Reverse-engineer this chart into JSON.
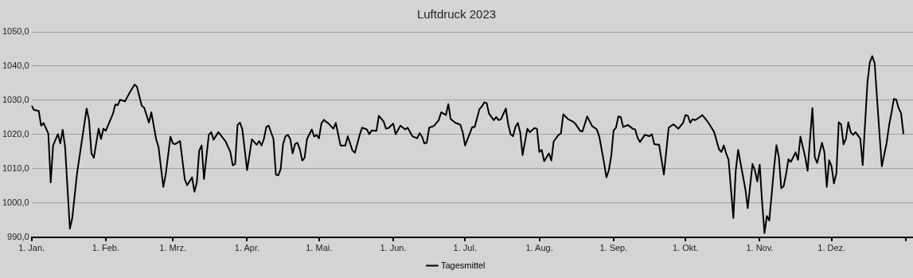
{
  "chart_data": {
    "type": "line",
    "title": "Luftdruck 2023",
    "x": [
      "2023-01-01",
      "2023-01-02",
      "2023-01-04",
      "2023-01-05",
      "2023-01-06",
      "2023-01-08",
      "2023-01-09",
      "2023-01-10",
      "2023-01-12",
      "2023-01-13",
      "2023-01-14",
      "2023-01-15",
      "2023-01-17",
      "2023-01-18",
      "2023-01-20",
      "2023-01-24",
      "2023-01-25",
      "2023-01-26",
      "2023-01-27",
      "2023-01-29",
      "2023-01-30",
      "2023-01-31",
      "2023-02-01",
      "2023-02-04",
      "2023-02-05",
      "2023-02-06",
      "2023-02-07",
      "2023-02-09",
      "2023-02-11",
      "2023-02-13",
      "2023-02-14",
      "2023-02-16",
      "2023-02-17",
      "2023-02-19",
      "2023-02-20",
      "2023-02-22",
      "2023-02-23",
      "2023-02-25",
      "2023-02-26",
      "2023-02-28",
      "2023-03-01",
      "2023-03-02",
      "2023-03-04",
      "2023-03-06",
      "2023-03-07",
      "2023-03-09",
      "2023-03-10",
      "2023-03-11",
      "2023-03-12",
      "2023-03-13",
      "2023-03-14",
      "2023-03-16",
      "2023-03-17",
      "2023-03-18",
      "2023-03-20",
      "2023-03-22",
      "2023-03-23",
      "2023-03-25",
      "2023-03-26",
      "2023-03-27",
      "2023-03-28",
      "2023-03-29",
      "2023-03-30",
      "2023-04-01",
      "2023-04-03",
      "2023-04-05",
      "2023-04-06",
      "2023-04-07",
      "2023-04-08",
      "2023-04-09",
      "2023-04-10",
      "2023-04-12",
      "2023-04-13",
      "2023-04-14",
      "2023-04-15",
      "2023-04-16",
      "2023-04-17",
      "2023-04-18",
      "2023-04-19",
      "2023-04-20",
      "2023-04-21",
      "2023-04-22",
      "2023-04-23",
      "2023-04-24",
      "2023-04-25",
      "2023-04-26",
      "2023-04-28",
      "2023-04-29",
      "2023-04-30",
      "2023-05-01",
      "2023-05-02",
      "2023-05-03",
      "2023-05-05",
      "2023-05-07",
      "2023-05-08",
      "2023-05-10",
      "2023-05-12",
      "2023-05-13",
      "2023-05-15",
      "2023-05-16",
      "2023-05-18",
      "2023-05-19",
      "2023-05-21",
      "2023-05-22",
      "2023-05-23",
      "2023-05-25",
      "2023-05-26",
      "2023-05-28",
      "2023-05-29",
      "2023-05-30",
      "2023-06-01",
      "2023-06-02",
      "2023-06-04",
      "2023-06-06",
      "2023-06-07",
      "2023-06-09",
      "2023-06-11",
      "2023-06-12",
      "2023-06-13",
      "2023-06-14",
      "2023-06-15",
      "2023-06-16",
      "2023-06-18",
      "2023-06-20",
      "2023-06-21",
      "2023-06-23",
      "2023-06-24",
      "2023-06-25",
      "2023-06-27",
      "2023-06-29",
      "2023-06-30",
      "2023-07-01",
      "2023-07-04",
      "2023-07-05",
      "2023-07-07",
      "2023-07-08",
      "2023-07-09",
      "2023-07-10",
      "2023-07-11",
      "2023-07-13",
      "2023-07-14",
      "2023-07-15",
      "2023-07-16",
      "2023-07-18",
      "2023-07-19",
      "2023-07-20",
      "2023-07-21",
      "2023-07-22",
      "2023-07-23",
      "2023-07-24",
      "2023-07-25",
      "2023-07-27",
      "2023-07-28",
      "2023-07-30",
      "2023-07-31",
      "2023-08-01",
      "2023-08-02",
      "2023-08-03",
      "2023-08-05",
      "2023-08-06",
      "2023-08-07",
      "2023-08-09",
      "2023-08-10",
      "2023-08-11",
      "2023-08-13",
      "2023-08-15",
      "2023-08-16",
      "2023-08-18",
      "2023-08-19",
      "2023-08-21",
      "2023-08-23",
      "2023-08-25",
      "2023-08-26",
      "2023-08-28",
      "2023-08-29",
      "2023-08-30",
      "2023-08-31",
      "2023-09-01",
      "2023-09-02",
      "2023-09-03",
      "2023-09-04",
      "2023-09-05",
      "2023-09-07",
      "2023-09-09",
      "2023-09-10",
      "2023-09-11",
      "2023-09-12",
      "2023-09-14",
      "2023-09-16",
      "2023-09-17",
      "2023-09-18",
      "2023-09-20",
      "2023-09-22",
      "2023-09-24",
      "2023-09-26",
      "2023-09-28",
      "2023-09-30",
      "2023-10-01",
      "2023-10-02",
      "2023-10-03",
      "2023-10-04",
      "2023-10-05",
      "2023-10-07",
      "2023-10-08",
      "2023-10-10",
      "2023-10-11",
      "2023-10-13",
      "2023-10-15",
      "2023-10-16",
      "2023-10-17",
      "2023-10-18",
      "2023-10-19",
      "2023-10-21",
      "2023-10-22",
      "2023-10-23",
      "2023-10-26",
      "2023-10-27",
      "2023-10-29",
      "2023-10-30",
      "2023-10-31",
      "2023-11-01",
      "2023-11-02",
      "2023-11-03",
      "2023-11-04",
      "2023-11-05",
      "2023-11-07",
      "2023-11-08",
      "2023-11-09",
      "2023-11-10",
      "2023-11-11",
      "2023-11-12",
      "2023-11-13",
      "2023-11-14",
      "2023-11-16",
      "2023-11-17",
      "2023-11-18",
      "2023-11-20",
      "2023-11-21",
      "2023-11-23",
      "2023-11-24",
      "2023-11-25",
      "2023-11-27",
      "2023-11-28",
      "2023-11-29",
      "2023-11-30",
      "2023-12-01",
      "2023-12-02",
      "2023-12-03",
      "2023-12-04",
      "2023-12-05",
      "2023-12-06",
      "2023-12-07",
      "2023-12-08",
      "2023-12-09",
      "2023-12-10",
      "2023-12-11",
      "2023-12-13",
      "2023-12-14",
      "2023-12-16",
      "2023-12-17",
      "2023-12-18",
      "2023-12-19",
      "2023-12-20",
      "2023-12-21",
      "2023-12-22",
      "2023-12-24",
      "2023-12-25",
      "2023-12-26",
      "2023-12-27",
      "2023-12-28",
      "2023-12-29",
      "2023-12-30",
      "2023-12-31"
    ],
    "series": [
      {
        "name": "Tagesmittel",
        "color": "#000000",
        "values": [
          1028.4,
          1027.2,
          1026.9,
          1022.6,
          1023.4,
          1020.3,
          1006.0,
          1016.8,
          1020.1,
          1017.4,
          1021.4,
          1016.4,
          992.5,
          995.6,
          1008.7,
          1027.6,
          1024.2,
          1014.5,
          1013.2,
          1021.7,
          1018.7,
          1021.7,
          1021.1,
          1026.1,
          1028.8,
          1028.6,
          1030.2,
          1029.7,
          1032.3,
          1034.6,
          1034.0,
          1028.4,
          1027.9,
          1023.5,
          1026.5,
          1018.7,
          1016.4,
          1004.7,
          1008.3,
          1019.4,
          1017.4,
          1017.2,
          1018.1,
          1006.8,
          1005.2,
          1007.5,
          1003.3,
          1006.0,
          1015.3,
          1016.8,
          1007.0,
          1019.9,
          1020.7,
          1018.5,
          1020.7,
          1018.9,
          1018.0,
          1014.9,
          1011.0,
          1011.4,
          1022.8,
          1023.5,
          1021.5,
          1009.6,
          1018.6,
          1017.0,
          1018.1,
          1016.8,
          1018.7,
          1022.2,
          1022.6,
          1018.7,
          1008.3,
          1008.1,
          1009.9,
          1017.2,
          1019.5,
          1019.9,
          1018.7,
          1014.5,
          1017.2,
          1017.6,
          1015.7,
          1012.4,
          1013.2,
          1018.7,
          1021.5,
          1019.4,
          1019.9,
          1018.9,
          1023.2,
          1024.3,
          1023.2,
          1021.7,
          1023.4,
          1016.8,
          1016.8,
          1019.5,
          1015.3,
          1014.7,
          1019.9,
          1022.0,
          1021.5,
          1020.1,
          1021.2,
          1021.1,
          1025.5,
          1023.8,
          1021.7,
          1021.9,
          1023.2,
          1020.1,
          1022.6,
          1021.5,
          1022.0,
          1019.5,
          1018.9,
          1020.4,
          1019.4,
          1017.4,
          1017.6,
          1022.0,
          1022.5,
          1024.2,
          1026.5,
          1025.7,
          1028.9,
          1024.5,
          1023.4,
          1022.9,
          1020.7,
          1016.8,
          1022.2,
          1022.2,
          1027.4,
          1028.2,
          1029.4,
          1029.2,
          1026.1,
          1024.2,
          1025.1,
          1024.2,
          1024.5,
          1027.6,
          1023.0,
          1020.1,
          1019.5,
          1022.2,
          1023.4,
          1020.7,
          1014.0,
          1021.7,
          1020.7,
          1021.9,
          1021.7,
          1014.9,
          1015.5,
          1012.2,
          1014.5,
          1012.4,
          1018.0,
          1019.9,
          1020.3,
          1025.9,
          1024.5,
          1023.8,
          1023.2,
          1021.1,
          1020.9,
          1025.3,
          1022.5,
          1021.5,
          1019.5,
          1011.8,
          1007.5,
          1009.5,
          1013.7,
          1021.2,
          1022.0,
          1025.3,
          1025.1,
          1022.2,
          1022.8,
          1021.7,
          1021.5,
          1019.1,
          1017.8,
          1019.9,
          1019.5,
          1020.1,
          1017.2,
          1017.0,
          1008.3,
          1022.0,
          1023.0,
          1021.7,
          1023.4,
          1025.7,
          1025.5,
          1023.4,
          1024.5,
          1024.2,
          1025.1,
          1025.7,
          1024.0,
          1023.0,
          1020.7,
          1015.7,
          1014.9,
          1016.8,
          1014.5,
          1012.6,
          995.6,
          1009.5,
          1015.5,
          1004.1,
          998.5,
          1011.4,
          1009.5,
          1006.3,
          1011.2,
          1000.3,
          991.2,
          996.2,
          994.9,
          1010.3,
          1016.9,
          1013.4,
          1004.3,
          1004.9,
          1008.4,
          1012.8,
          1012.0,
          1014.8,
          1012.6,
          1019.4,
          1013.4,
          1009.4,
          1027.7,
          1013.4,
          1011.7,
          1017.6,
          1014.9,
          1004.7,
          1012.5,
          1010.7,
          1005.7,
          1008.6,
          1023.6,
          1023.0,
          1017.1,
          1018.8,
          1023.6,
          1020.7,
          1019.9,
          1020.7,
          1018.8,
          1011.1,
          1035.4,
          1041.2,
          1042.9,
          1040.8,
          1030.4,
          1020.3,
          1010.7,
          1017.6,
          1022.6,
          1026.3,
          1030.4,
          1030.2,
          1027.7,
          1026.3,
          1020.3
        ]
      }
    ],
    "xlim": [
      "2023-01-01",
      "2024-01-04"
    ],
    "xticks": [
      {
        "value": "2023-01-01",
        "label": "1. Jan."
      },
      {
        "value": "2023-02-01",
        "label": "1. Feb."
      },
      {
        "value": "2023-03-01",
        "label": "1. Mrz."
      },
      {
        "value": "2023-04-01",
        "label": "1. Apr."
      },
      {
        "value": "2023-05-01",
        "label": "1. Mai."
      },
      {
        "value": "2023-06-01",
        "label": "1. Jun."
      },
      {
        "value": "2023-07-01",
        "label": "1. Jul."
      },
      {
        "value": "2023-08-01",
        "label": "1. Aug."
      },
      {
        "value": "2023-09-01",
        "label": "1. Sep."
      },
      {
        "value": "2023-10-01",
        "label": "1. Okt."
      },
      {
        "value": "2023-11-01",
        "label": "1. Nov."
      },
      {
        "value": "2023-12-01",
        "label": "1. Dez."
      },
      {
        "value": "2024-01-01",
        "label": null
      }
    ],
    "ylim": [
      990,
      1050
    ],
    "yticks": [
      {
        "value": 990,
        "label": "990,0"
      },
      {
        "value": 1000,
        "label": "1000,0"
      },
      {
        "value": 1010,
        "label": "1010,0"
      },
      {
        "value": 1020,
        "label": "1020,0"
      },
      {
        "value": 1030,
        "label": "1030,0"
      },
      {
        "value": 1040,
        "label": "1040,0"
      },
      {
        "value": 1050,
        "label": "1050,0"
      }
    ],
    "grid": "y",
    "legend": "bottom",
    "marker": "none",
    "line_style": "solid"
  }
}
